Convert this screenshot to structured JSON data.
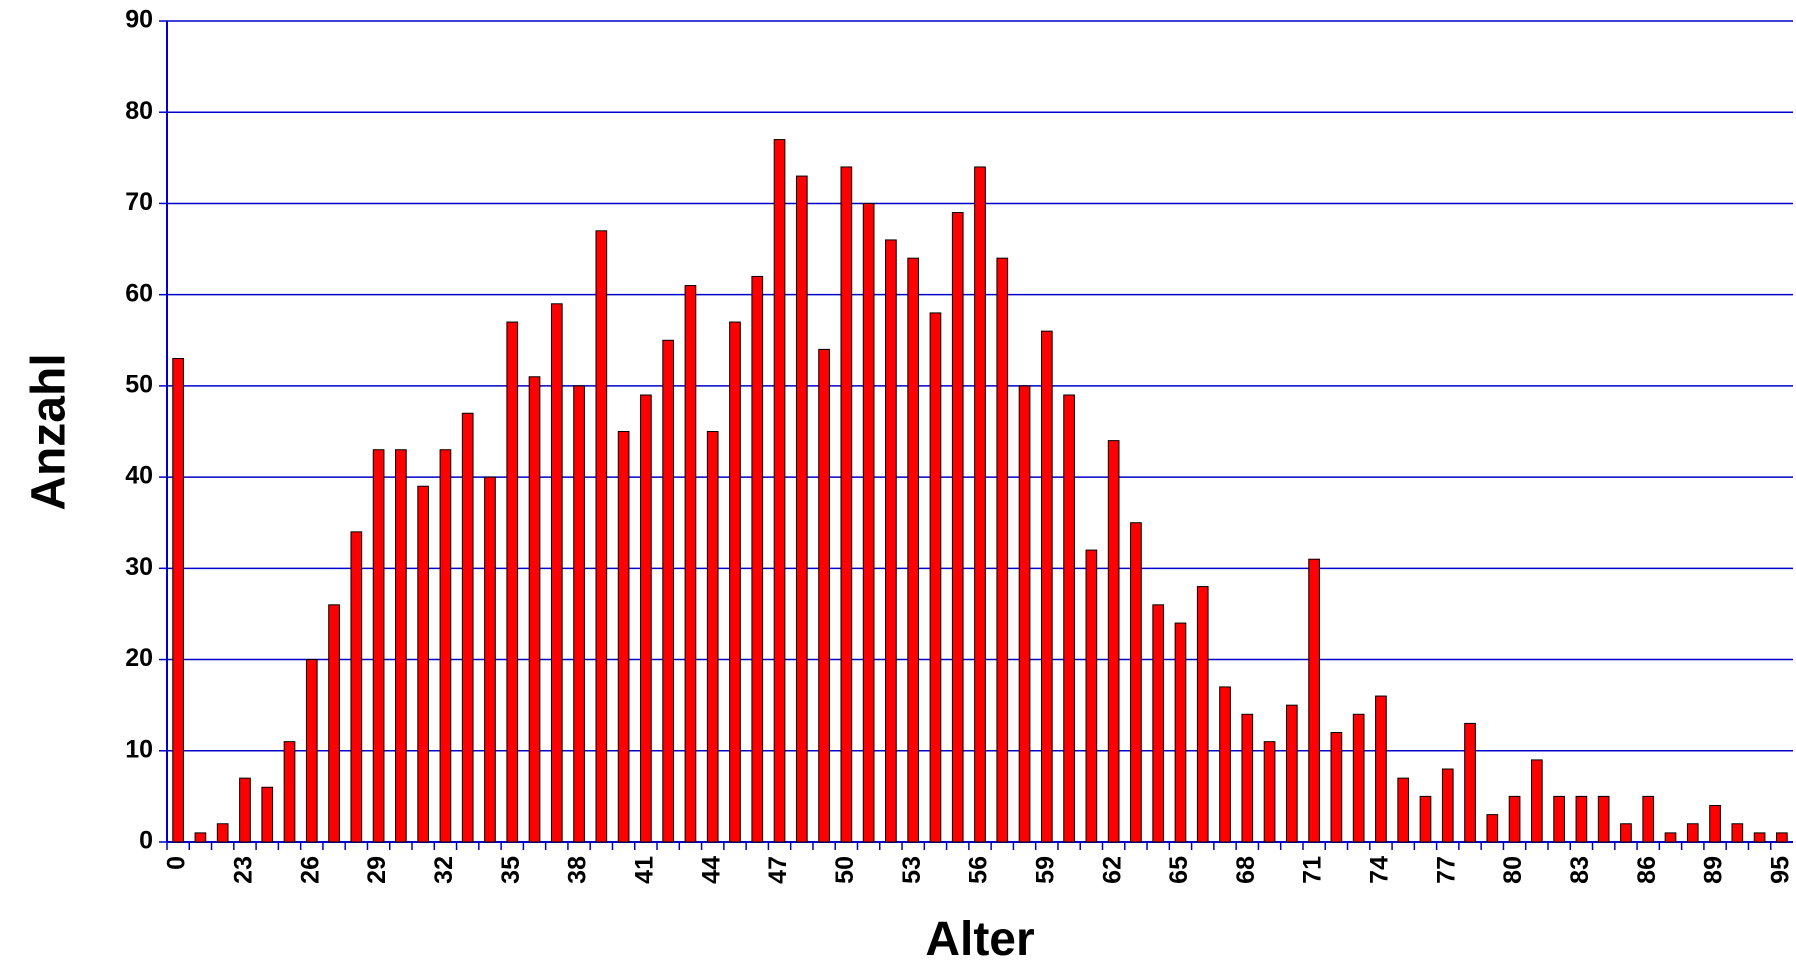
{
  "chart_data": {
    "type": "bar",
    "x_label": "Alter",
    "y_label": "Anzahl",
    "categories": [
      "0",
      null,
      null,
      "23",
      null,
      null,
      "26",
      null,
      null,
      "29",
      null,
      null,
      "32",
      null,
      null,
      "35",
      null,
      null,
      "38",
      null,
      null,
      "41",
      null,
      null,
      "44",
      null,
      null,
      "47",
      null,
      null,
      "50",
      null,
      null,
      "53",
      null,
      null,
      "56",
      null,
      null,
      "59",
      null,
      null,
      "62",
      null,
      null,
      "65",
      null,
      null,
      "68",
      null,
      null,
      "71",
      null,
      null,
      "74",
      null,
      null,
      "77",
      null,
      null,
      "80",
      null,
      null,
      "83",
      null,
      null,
      "86",
      null,
      null,
      "89",
      null,
      null,
      "95"
    ],
    "values": [
      53,
      1,
      2,
      7,
      6,
      11,
      20,
      26,
      34,
      43,
      43,
      39,
      43,
      47,
      40,
      57,
      51,
      59,
      50,
      67,
      45,
      49,
      55,
      61,
      45,
      57,
      62,
      77,
      73,
      54,
      74,
      70,
      66,
      64,
      58,
      69,
      74,
      64,
      50,
      56,
      49,
      32,
      44,
      35,
      26,
      24,
      28,
      17,
      14,
      11,
      15,
      31,
      12,
      14,
      16,
      7,
      5,
      8,
      13,
      3,
      5,
      9,
      5,
      5,
      5,
      2,
      5,
      1,
      2,
      4,
      2,
      1,
      1
    ],
    "color": "#ff0000",
    "ylim": [
      0,
      90
    ],
    "yticks": [
      0,
      10,
      20,
      30,
      40,
      50,
      60,
      70,
      80,
      90
    ],
    "grid": true
  }
}
